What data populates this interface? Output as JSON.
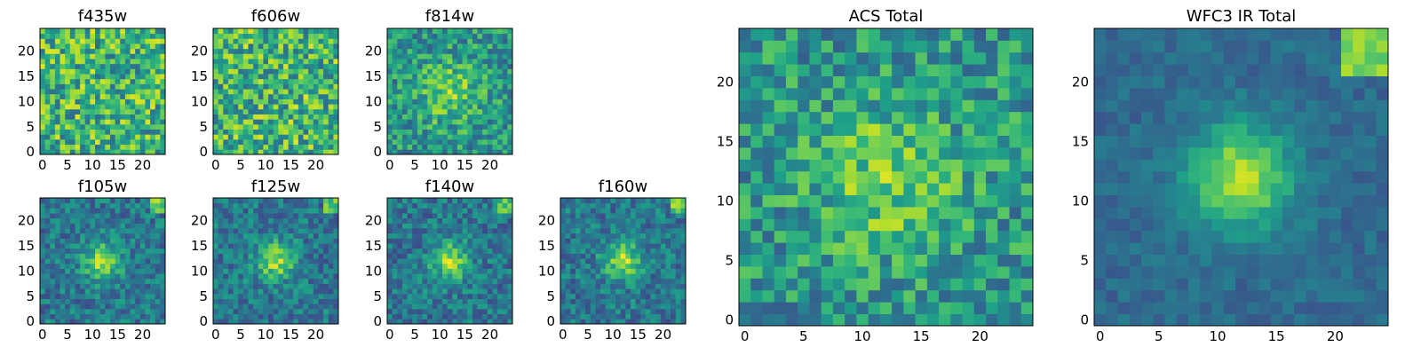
{
  "chart_data": [
    {
      "type": "heatmap",
      "title": "f435w",
      "grid": false,
      "n": 25,
      "xlim": [
        0,
        24
      ],
      "ylim": [
        0,
        24
      ],
      "xticks": [
        "0",
        "5",
        "10",
        "15",
        "20"
      ],
      "yticks": [
        "0",
        "5",
        "10",
        "15",
        "20"
      ],
      "colormap": "viridis",
      "pattern": "noise",
      "seed": 11
    },
    {
      "type": "heatmap",
      "title": "f606w",
      "grid": false,
      "n": 25,
      "xlim": [
        0,
        24
      ],
      "ylim": [
        0,
        24
      ],
      "xticks": [
        "0",
        "5",
        "10",
        "15",
        "20"
      ],
      "yticks": [
        "0",
        "5",
        "10",
        "15",
        "20"
      ],
      "colormap": "viridis",
      "pattern": "noise",
      "seed": 23
    },
    {
      "type": "heatmap",
      "title": "f814w",
      "grid": false,
      "n": 25,
      "xlim": [
        0,
        24
      ],
      "ylim": [
        0,
        24
      ],
      "xticks": [
        "0",
        "5",
        "10",
        "15",
        "20"
      ],
      "yticks": [
        "0",
        "5",
        "10",
        "15",
        "20"
      ],
      "colormap": "viridis",
      "pattern": "weak-center",
      "seed": 37
    },
    {
      "type": "heatmap",
      "title": "f105w",
      "grid": false,
      "n": 25,
      "xlim": [
        0,
        24
      ],
      "ylim": [
        0,
        24
      ],
      "xticks": [
        "0",
        "5",
        "10",
        "15",
        "20"
      ],
      "yticks": [
        "0",
        "5",
        "10",
        "15",
        "20"
      ],
      "colormap": "viridis",
      "pattern": "source",
      "seed": 41
    },
    {
      "type": "heatmap",
      "title": "f125w",
      "grid": false,
      "n": 25,
      "xlim": [
        0,
        24
      ],
      "ylim": [
        0,
        24
      ],
      "xticks": [
        "0",
        "5",
        "10",
        "15",
        "20"
      ],
      "yticks": [
        "0",
        "5",
        "10",
        "15",
        "20"
      ],
      "colormap": "viridis",
      "pattern": "source",
      "seed": 53
    },
    {
      "type": "heatmap",
      "title": "f140w",
      "grid": false,
      "n": 25,
      "xlim": [
        0,
        24
      ],
      "ylim": [
        0,
        24
      ],
      "xticks": [
        "0",
        "5",
        "10",
        "15",
        "20"
      ],
      "yticks": [
        "0",
        "5",
        "10",
        "15",
        "20"
      ],
      "colormap": "viridis",
      "pattern": "source",
      "seed": 67
    },
    {
      "type": "heatmap",
      "title": "f160w",
      "grid": false,
      "n": 25,
      "xlim": [
        0,
        24
      ],
      "ylim": [
        0,
        24
      ],
      "xticks": [
        "0",
        "5",
        "10",
        "15",
        "20"
      ],
      "yticks": [
        "0",
        "5",
        "10",
        "15",
        "20"
      ],
      "colormap": "viridis",
      "pattern": "source",
      "seed": 79
    },
    {
      "type": "heatmap",
      "title": "ACS Total",
      "grid": false,
      "n": 25,
      "xlim": [
        0,
        24
      ],
      "ylim": [
        0,
        24
      ],
      "xticks": [
        "0",
        "5",
        "10",
        "15",
        "20"
      ],
      "yticks": [
        "0",
        "5",
        "10",
        "15",
        "20"
      ],
      "colormap": "viridis",
      "pattern": "weak-center",
      "seed": 97
    },
    {
      "type": "heatmap",
      "title": "WFC3 IR Total",
      "grid": false,
      "n": 25,
      "xlim": [
        0,
        24
      ],
      "ylim": [
        0,
        24
      ],
      "xticks": [
        "0",
        "5",
        "10",
        "15",
        "20"
      ],
      "yticks": [
        "0",
        "5",
        "10",
        "15",
        "20"
      ],
      "colormap": "viridis",
      "pattern": "source-smooth",
      "seed": 101
    }
  ]
}
